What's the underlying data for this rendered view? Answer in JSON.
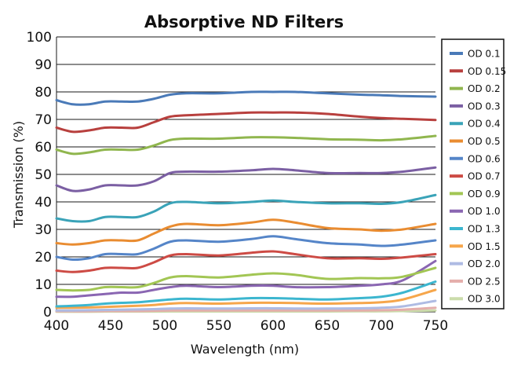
{
  "chart_data": {
    "type": "line",
    "title": "Absorptive ND Filters",
    "xlabel": "Wavelength (nm)",
    "ylabel": "Transmission (%)",
    "xlim": [
      400,
      750
    ],
    "ylim": [
      0,
      100
    ],
    "xticks": [
      400,
      450,
      500,
      550,
      600,
      650,
      700,
      750
    ],
    "yticks": [
      0,
      10,
      20,
      30,
      40,
      50,
      60,
      70,
      80,
      90,
      100
    ],
    "grid": "horizontal",
    "legend_position": "right",
    "x": [
      400,
      415,
      430,
      445,
      460,
      475,
      490,
      505,
      520,
      550,
      580,
      600,
      620,
      650,
      680,
      700,
      720,
      750
    ],
    "series": [
      {
        "name": "OD 0.1",
        "color": "#4a7ab8",
        "values": [
          77,
          75.5,
          75.5,
          76.5,
          76.5,
          76.5,
          77.5,
          79,
          79.5,
          79.5,
          80,
          80,
          80,
          79.5,
          79,
          78.8,
          78.5,
          78.3
        ]
      },
      {
        "name": "OD 0.15",
        "color": "#b8403e",
        "values": [
          67,
          65.5,
          66,
          67,
          67,
          67,
          69,
          71,
          71.5,
          72,
          72.5,
          72.5,
          72.5,
          72,
          71,
          70.5,
          70.2,
          69.8
        ]
      },
      {
        "name": "OD 0.2",
        "color": "#90b64e",
        "values": [
          59,
          57.5,
          58,
          59,
          59,
          59,
          60.5,
          62.5,
          63,
          63,
          63.5,
          63.5,
          63.3,
          62.8,
          62.6,
          62.4,
          62.8,
          64
        ]
      },
      {
        "name": "OD 0.3",
        "color": "#7b5fa3",
        "values": [
          46,
          44,
          44.5,
          46,
          46,
          46,
          47.5,
          50.5,
          51,
          51,
          51.5,
          52,
          51.5,
          50.5,
          50.5,
          50.5,
          51,
          52.5
        ]
      },
      {
        "name": "OD 0.4",
        "color": "#3aa3b8",
        "values": [
          34,
          33,
          33,
          34.5,
          34.5,
          34.5,
          36.5,
          39.5,
          40,
          39.5,
          40,
          40.5,
          40,
          39.5,
          39.5,
          39.3,
          40,
          42.5
        ]
      },
      {
        "name": "OD 0.5",
        "color": "#e98c31",
        "values": [
          25,
          24.5,
          25,
          26,
          26,
          26,
          28.5,
          31,
          32,
          31.5,
          32.5,
          33.5,
          32.5,
          30.5,
          30,
          29.5,
          30,
          32
        ]
      },
      {
        "name": "OD 0.6",
        "color": "#5585c8",
        "values": [
          20,
          19,
          19.5,
          21,
          21,
          21,
          23,
          25.5,
          26,
          25.5,
          26.5,
          27.5,
          26.5,
          25,
          24.5,
          24,
          24.5,
          26
        ]
      },
      {
        "name": "OD 0.7",
        "color": "#cd4b45",
        "values": [
          15,
          14.5,
          15,
          16,
          16,
          16,
          18,
          20.5,
          21,
          20.5,
          21.5,
          22,
          21,
          19.5,
          19.5,
          19.3,
          19.8,
          21
        ]
      },
      {
        "name": "OD 0.9",
        "color": "#a2c654",
        "values": [
          8,
          7.8,
          8,
          9,
          9,
          9,
          10.5,
          12.5,
          13,
          12.5,
          13.5,
          14,
          13.5,
          12,
          12.3,
          12.2,
          12.8,
          16
        ]
      },
      {
        "name": "OD 1.0",
        "color": "#8a66b2",
        "values": [
          5.5,
          5.5,
          6,
          6.5,
          7,
          7,
          8,
          9,
          9.5,
          9,
          9.5,
          9.5,
          9,
          9,
          9.5,
          10,
          11.5,
          18.5
        ]
      },
      {
        "name": "OD 1.3",
        "color": "#3cb6cf",
        "values": [
          2,
          2.2,
          2.5,
          3,
          3.3,
          3.5,
          4,
          4.5,
          4.8,
          4.5,
          5,
          5,
          4.8,
          4.5,
          5,
          5.5,
          7,
          11
        ]
      },
      {
        "name": "OD 1.5",
        "color": "#f6a64b",
        "values": [
          1.5,
          1.5,
          1.6,
          1.8,
          2,
          2.2,
          2.5,
          3,
          3.2,
          3,
          3.3,
          3.3,
          3.2,
          3,
          3.2,
          3.5,
          4.5,
          8
        ]
      },
      {
        "name": "OD 2.0",
        "color": "#aebbe3",
        "values": [
          0.5,
          0.5,
          0.6,
          0.7,
          0.8,
          0.9,
          1,
          1.2,
          1.3,
          1.2,
          1.3,
          1.3,
          1.2,
          1.2,
          1.3,
          1.5,
          2,
          4
        ]
      },
      {
        "name": "OD 2.5",
        "color": "#e4aeab",
        "values": [
          0.2,
          0.2,
          0.2,
          0.3,
          0.3,
          0.3,
          0.4,
          0.5,
          0.5,
          0.5,
          0.5,
          0.5,
          0.5,
          0.5,
          0.5,
          0.6,
          0.8,
          1.5
        ]
      },
      {
        "name": "OD 3.0",
        "color": "#cbdcab",
        "values": [
          0.05,
          0.05,
          0.05,
          0.1,
          0.1,
          0.1,
          0.1,
          0.15,
          0.15,
          0.15,
          0.15,
          0.15,
          0.15,
          0.15,
          0.2,
          0.2,
          0.3,
          0.5
        ]
      }
    ]
  }
}
